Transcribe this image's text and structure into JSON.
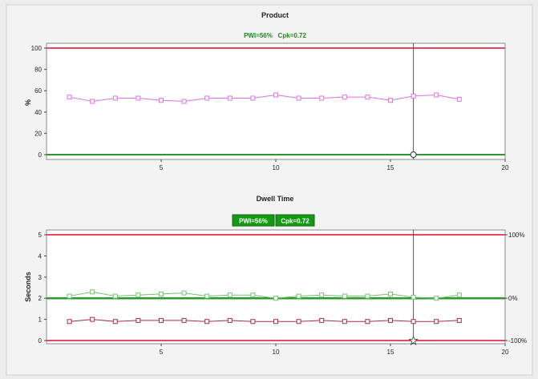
{
  "chart_data": [
    {
      "type": "line",
      "title": "Product",
      "subtitle": "PWI=56%   Cpk=0.72",
      "ylabel": "%",
      "xlim": [
        0,
        20
      ],
      "ylim": [
        0,
        100
      ],
      "x_ticks": [
        5,
        10,
        15,
        20
      ],
      "y_ticks": [
        0,
        20,
        40,
        60,
        80,
        100
      ],
      "limits": {
        "upper": 100,
        "lower": 0
      },
      "cursor_x": 16,
      "grid": false,
      "series": [
        {
          "color": "#e070e0",
          "marker": "square",
          "x": [
            1,
            2,
            3,
            4,
            5,
            6,
            7,
            8,
            9,
            10,
            11,
            12,
            13,
            14,
            15,
            16,
            17,
            18
          ],
          "values": [
            54,
            50,
            53,
            53,
            51,
            50,
            53,
            53,
            53,
            56,
            53,
            53,
            54,
            54,
            51,
            55,
            56,
            52
          ]
        }
      ]
    },
    {
      "type": "line",
      "title": "Dwell Time",
      "badges": [
        "PWI=56%",
        "Cpk=0.72"
      ],
      "ylabel": "Seconds",
      "xlim": [
        0,
        20
      ],
      "ylim": [
        0,
        5
      ],
      "x_ticks": [
        5,
        10,
        15,
        20
      ],
      "y_ticks": [
        0,
        1,
        2,
        3,
        4,
        5
      ],
      "right_axis_labels": [
        {
          "at": 5,
          "label": "100%"
        },
        {
          "at": 2,
          "label": "0%"
        },
        {
          "at": 0,
          "label": "-100%"
        }
      ],
      "limits": {
        "upper": 5,
        "lower": 0,
        "target": 2
      },
      "cursor_x": 16,
      "grid": false,
      "series": [
        {
          "color": "#6cc46c",
          "marker": "square",
          "x": [
            1,
            2,
            3,
            4,
            5,
            6,
            7,
            8,
            9,
            10,
            11,
            12,
            13,
            14,
            15,
            16,
            17,
            18
          ],
          "values": [
            2.1,
            2.3,
            2.1,
            2.15,
            2.2,
            2.25,
            2.1,
            2.15,
            2.15,
            2.0,
            2.1,
            2.15,
            2.1,
            2.1,
            2.2,
            2.05,
            2.0,
            2.15
          ]
        },
        {
          "color": "#a03040",
          "marker": "square",
          "x": [
            1,
            2,
            3,
            4,
            5,
            6,
            7,
            8,
            9,
            10,
            11,
            12,
            13,
            14,
            15,
            16,
            17,
            18
          ],
          "values": [
            0.9,
            1.0,
            0.9,
            0.95,
            0.95,
            0.95,
            0.9,
            0.95,
            0.9,
            0.9,
            0.9,
            0.95,
            0.9,
            0.9,
            0.95,
            0.9,
            0.9,
            0.95
          ]
        }
      ]
    }
  ]
}
